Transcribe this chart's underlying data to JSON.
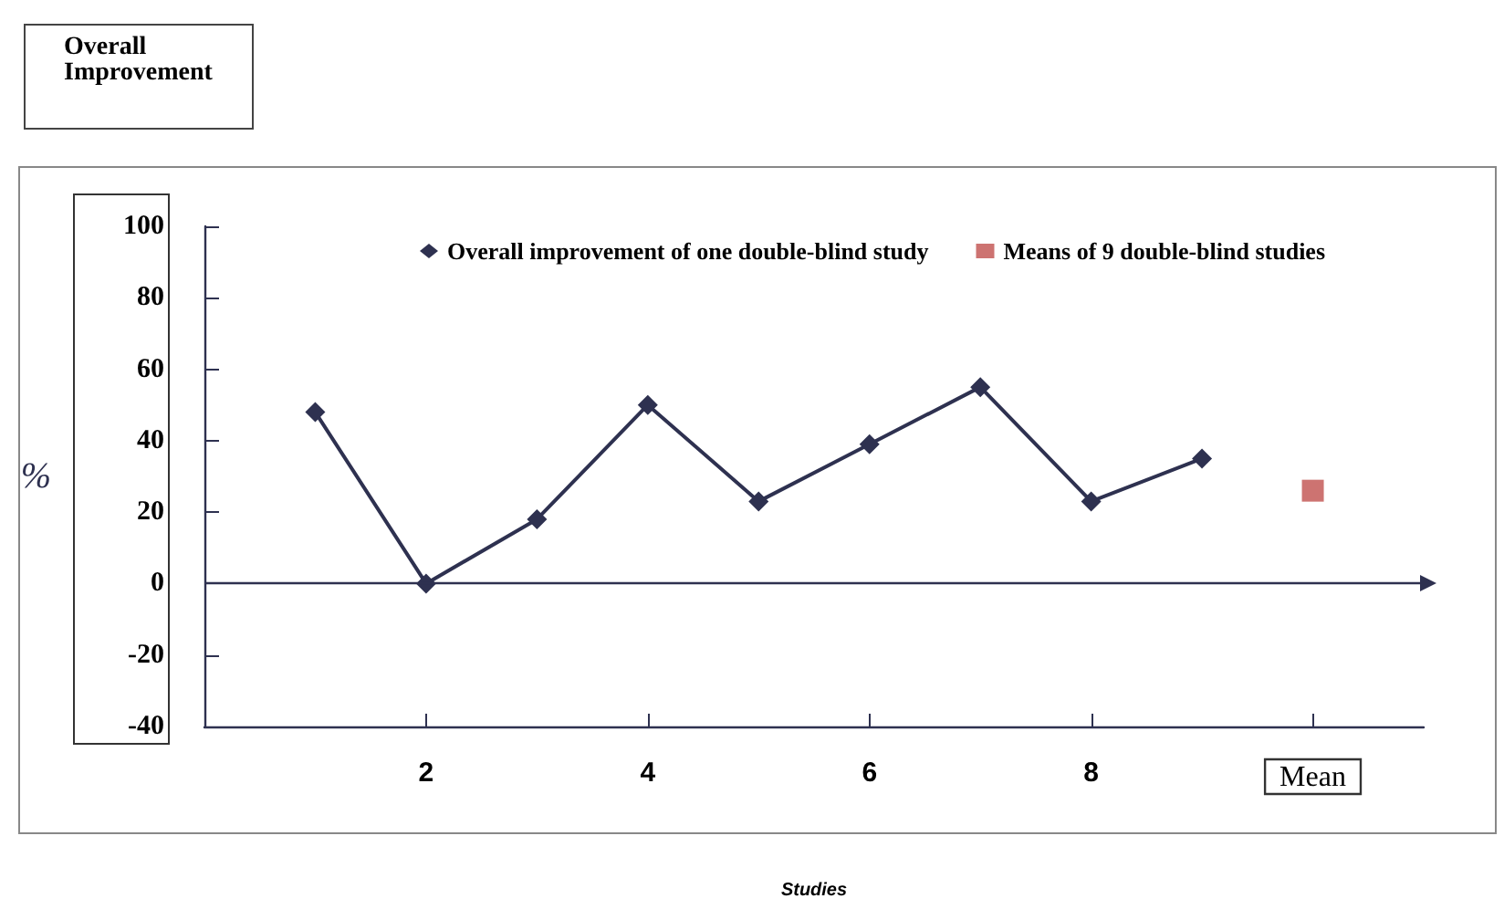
{
  "chart_data": {
    "type": "line",
    "title": "Overall Improvement",
    "xlabel": "Studies",
    "ylabel": "%",
    "series": [
      {
        "name": "Overall improvement of one double-blind study",
        "color": "#2e3150",
        "marker": "diamond",
        "x": [
          1,
          2,
          3,
          4,
          5,
          6,
          7,
          8,
          9
        ],
        "values": [
          48,
          0,
          18,
          50,
          23,
          39,
          55,
          23,
          35
        ]
      },
      {
        "name": "Means of 9 double-blind studies",
        "type": "scatter",
        "color": "#c0504d",
        "marker": "square",
        "x": [
          10
        ],
        "values": [
          26
        ]
      }
    ],
    "xlim": [
      0,
      11
    ],
    "xticks": [
      2,
      4,
      6,
      8,
      {
        "value": 10,
        "label": "Mean"
      }
    ],
    "ylim": [
      -40,
      100
    ],
    "yticks": [
      -40,
      -20,
      0,
      20,
      40,
      60,
      80,
      100
    ],
    "ref_lines": [
      {
        "axis": "y",
        "value": 0,
        "color": "#2e3150"
      }
    ],
    "grid": false,
    "legend": "top",
    "line_style": "solid"
  }
}
